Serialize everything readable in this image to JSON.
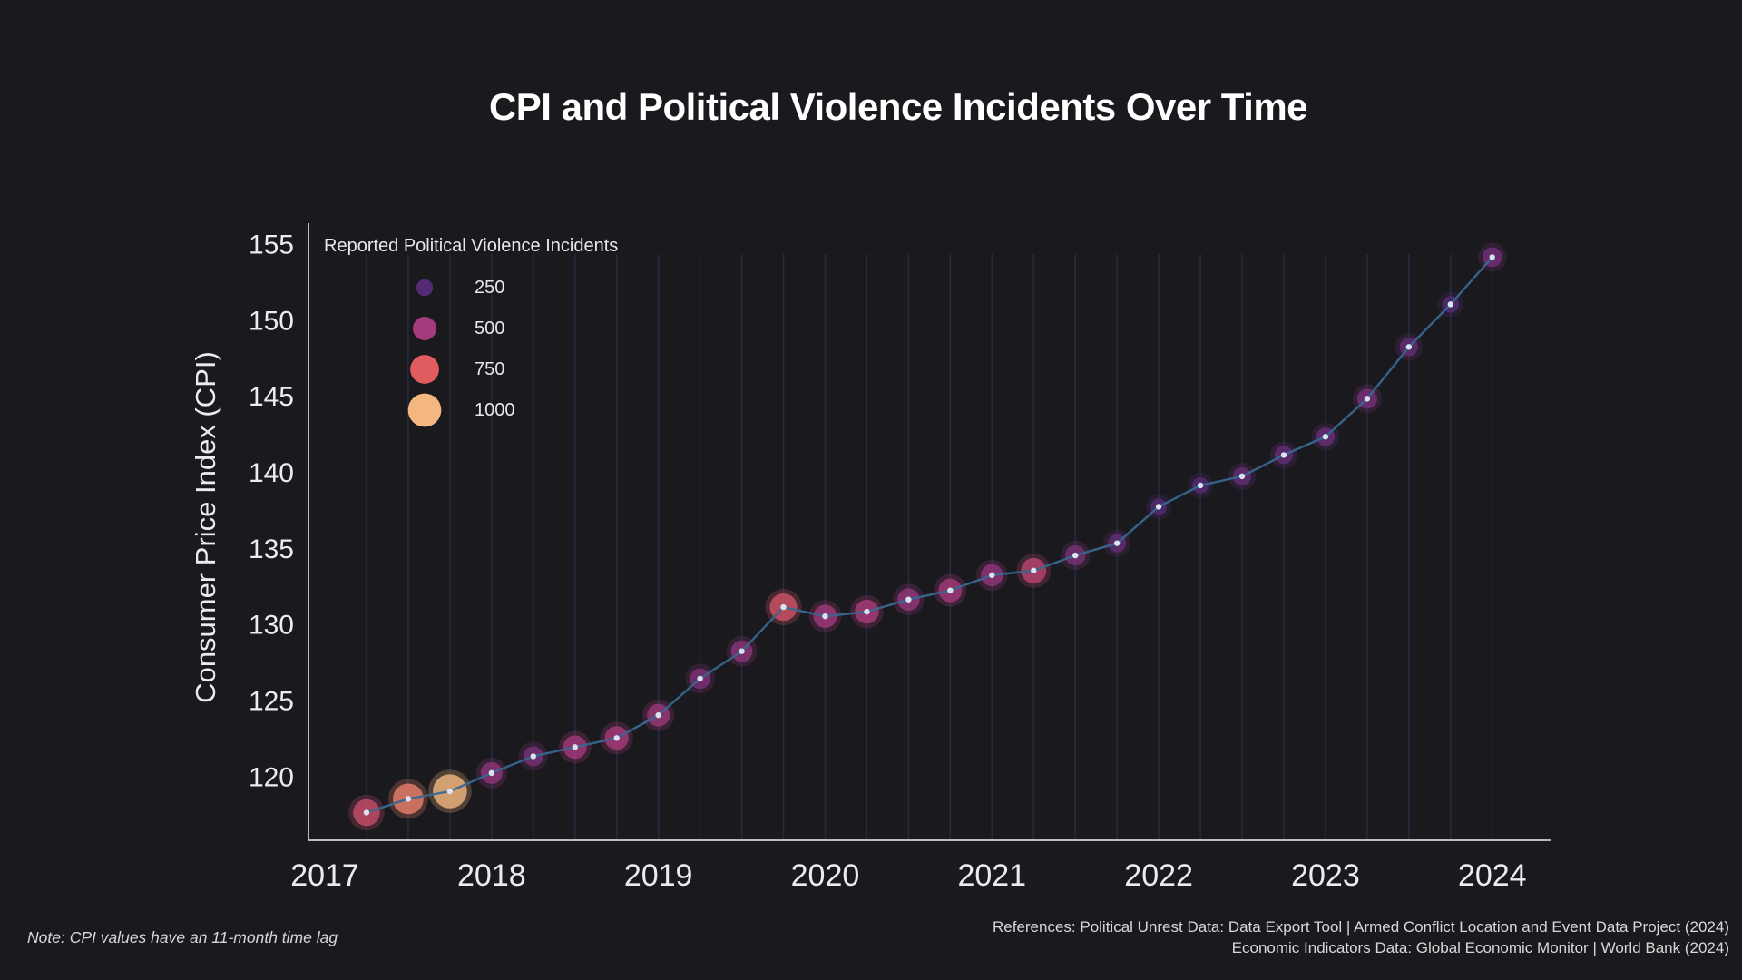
{
  "header": {
    "title": "CPI and Political Violence Incidents Over Time"
  },
  "footer": {
    "note": "Note: CPI values have an 11-month time lag",
    "references_line1": "References: Political Unrest Data: Data Export Tool | Armed Conflict Location and Event Data Project (2024)",
    "references_line2": "Economic Indicators Data: Global Economic Monitor | World Bank (2024)"
  },
  "style": {
    "background": "#1a1a1e",
    "line_color": "#38678f",
    "marker_dot_color": "#d9e3f0",
    "grid_color": "#242c40",
    "axis_color": "#b9bcc2",
    "tick_label_color": "#ececee",
    "bubble_opacity": 0.8,
    "bubble_glow_opacity": 0.25,
    "size_scale": 0.58
  },
  "chart_data": {
    "type": "scatter",
    "subtype": "line-with-bubble-markers",
    "title": "CPI and Political Violence Incidents Over Time",
    "xlabel": "",
    "ylabel": "Consumer Price Index (CPI)",
    "x_ticks": [
      2017,
      2018,
      2019,
      2020,
      2021,
      2022,
      2023,
      2024
    ],
    "y_ticks": [
      120,
      125,
      130,
      135,
      140,
      145,
      150,
      155
    ],
    "xlim": [
      2016.902,
      2024.355
    ],
    "ylim": [
      115.88,
      156.43
    ],
    "grid": "vertical line at every quarterly data point",
    "legend": {
      "title": "Reported Political Violence Incidents",
      "position": "upper-left",
      "items": [
        {
          "label": "250",
          "value": 250,
          "color": "#542a73"
        },
        {
          "label": "500",
          "value": 500,
          "color": "#a53a7c"
        },
        {
          "label": "750",
          "value": 750,
          "color": "#e05c5f"
        },
        {
          "label": "1000",
          "value": 1000,
          "color": "#f3b77f"
        }
      ]
    },
    "series": [
      {
        "name": "CPI with bubble size/color encoding reported political violence incidents",
        "points": [
          {
            "x": 2017.25,
            "cpi": 117.7,
            "incidents": 650
          },
          {
            "x": 2017.5,
            "cpi": 118.6,
            "incidents": 850
          },
          {
            "x": 2017.75,
            "cpi": 119.1,
            "incidents": 1050
          },
          {
            "x": 2018.0,
            "cpi": 120.3,
            "incidents": 430
          },
          {
            "x": 2018.25,
            "cpi": 121.4,
            "incidents": 360
          },
          {
            "x": 2018.5,
            "cpi": 122.0,
            "incidents": 500
          },
          {
            "x": 2018.75,
            "cpi": 122.6,
            "incidents": 510
          },
          {
            "x": 2019.0,
            "cpi": 124.1,
            "incidents": 470
          },
          {
            "x": 2019.25,
            "cpi": 126.5,
            "incidents": 380
          },
          {
            "x": 2019.5,
            "cpi": 128.3,
            "incidents": 420
          },
          {
            "x": 2019.75,
            "cpi": 131.2,
            "incidents": 680
          },
          {
            "x": 2020.0,
            "cpi": 130.6,
            "incidents": 490
          },
          {
            "x": 2020.25,
            "cpi": 130.9,
            "incidents": 520
          },
          {
            "x": 2020.5,
            "cpi": 131.7,
            "incidents": 450
          },
          {
            "x": 2020.75,
            "cpi": 132.3,
            "incidents": 500
          },
          {
            "x": 2021.0,
            "cpi": 133.3,
            "incidents": 440
          },
          {
            "x": 2021.25,
            "cpi": 133.6,
            "incidents": 580
          },
          {
            "x": 2021.5,
            "cpi": 134.6,
            "incidents": 370
          },
          {
            "x": 2021.75,
            "cpi": 135.4,
            "incidents": 300
          },
          {
            "x": 2022.0,
            "cpi": 137.8,
            "incidents": 240
          },
          {
            "x": 2022.25,
            "cpi": 139.2,
            "incidents": 240
          },
          {
            "x": 2022.5,
            "cpi": 139.8,
            "incidents": 300
          },
          {
            "x": 2022.75,
            "cpi": 141.2,
            "incidents": 300
          },
          {
            "x": 2023.0,
            "cpi": 142.4,
            "incidents": 310
          },
          {
            "x": 2023.25,
            "cpi": 144.9,
            "incidents": 360
          },
          {
            "x": 2023.5,
            "cpi": 148.3,
            "incidents": 300
          },
          {
            "x": 2023.75,
            "cpi": 151.1,
            "incidents": 250
          },
          {
            "x": 2024.0,
            "cpi": 154.2,
            "incidents": 350
          }
        ]
      }
    ]
  }
}
